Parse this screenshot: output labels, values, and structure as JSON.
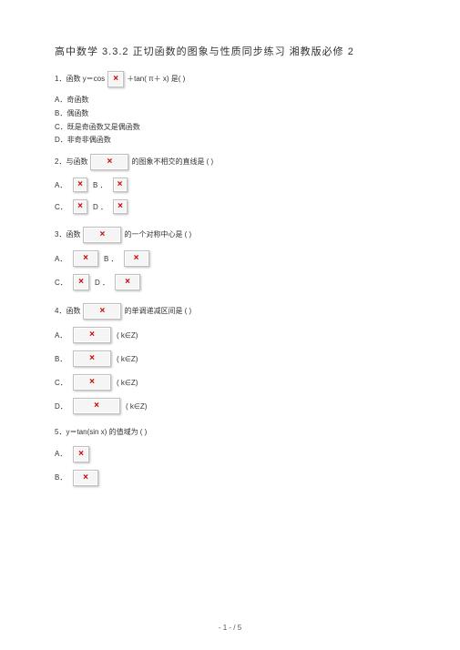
{
  "title": "高中数学 3.3.2  正切函数的图象与性质同步练习  湘教版必修 2",
  "q1": {
    "stem_a": "1．函数 y＝cos",
    "stem_b": "＋tan( π＋ x) 是(    )",
    "opts": {
      "A": "A．奇函数",
      "B": "B．偶函数",
      "C": "C．既是奇函数又是偶函数",
      "D": "D．非奇非偶函数"
    }
  },
  "q2": {
    "stem_a": "2．与函数",
    "stem_b": "的图象不相交的直线是   (    )",
    "A": "A．",
    "B": "B   ．",
    "C": "C．",
    "D": "D   ．"
  },
  "q3": {
    "stem_a": "3．函数",
    "stem_b": "的一个对称中心是   (    )",
    "A": "A．",
    "B": "B   ．",
    "C": "C．",
    "D": "D   ．"
  },
  "q4": {
    "stem_a": "4．函数",
    "stem_b": "的单调递减区间是   (    )",
    "zlabel": "( k∈Z)",
    "A": "A．",
    "B": "B．",
    "C": "C．",
    "D": "D．"
  },
  "q5": {
    "stem": "5．y＝tan(sin   x) 的值域为 (    )",
    "A": "A．",
    "B": "B．"
  },
  "footer": "- 1 - / 5"
}
